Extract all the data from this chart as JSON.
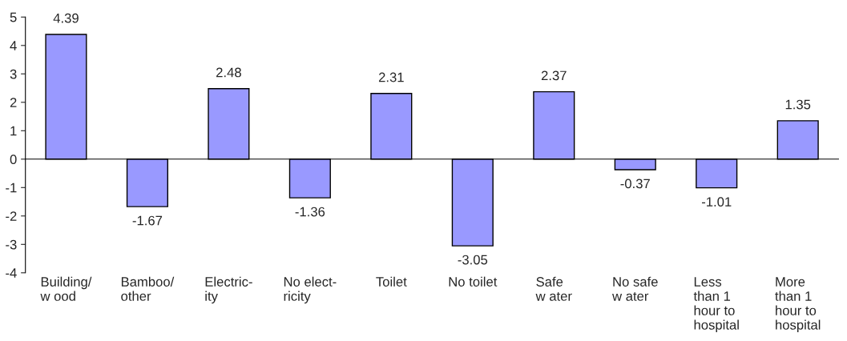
{
  "chart_data": {
    "type": "bar",
    "categories": [
      "Building/\nw ood",
      "Bamboo/\nother",
      "Electric-\nity",
      "No elect-\nricity",
      "Toilet",
      "No toilet",
      "Safe\nw ater",
      "No safe\nw ater",
      "Less\nthan 1\nhour to\nhospital",
      "More\nthan 1\nhour to\nhospital"
    ],
    "values": [
      4.39,
      -1.67,
      2.48,
      -1.36,
      2.31,
      -3.05,
      2.37,
      -0.37,
      -1.01,
      1.35
    ],
    "color": "#9999ff",
    "ylim": [
      -4,
      5
    ],
    "yticks": [
      -4,
      -3,
      -2,
      -1,
      0,
      1,
      2,
      3,
      4,
      5
    ],
    "data_labels": true,
    "legend": false
  }
}
